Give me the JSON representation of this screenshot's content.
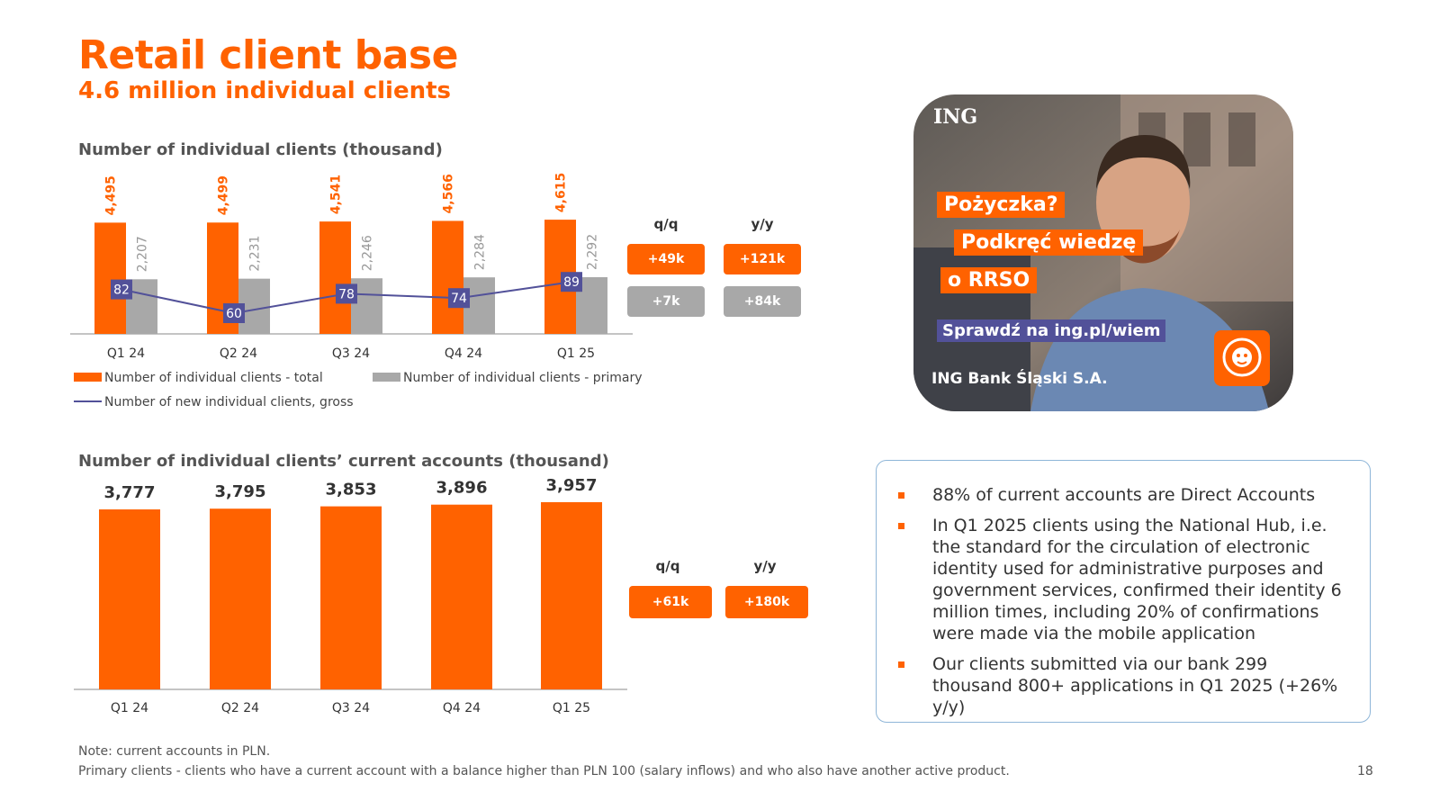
{
  "header": {
    "title": "Retail client base",
    "subtitle": "4.6 million individual clients"
  },
  "chart_data": [
    {
      "type": "bar",
      "title": "Number of individual clients (thousand)",
      "categories": [
        "Q1 24",
        "Q2 24",
        "Q3 24",
        "Q4 24",
        "Q1 25"
      ],
      "series": [
        {
          "name": "Number of individual clients - total",
          "kind": "bar",
          "values": [
            4495,
            4499,
            4541,
            4566,
            4615
          ],
          "labels": [
            "4,495",
            "4,499",
            "4,541",
            "4,566",
            "4,615"
          ],
          "color": "#ff6200"
        },
        {
          "name": "Number of individual clients - primary",
          "kind": "bar",
          "values": [
            2207,
            2231,
            2246,
            2284,
            2292
          ],
          "labels": [
            "2,207",
            "2,231",
            "2,246",
            "2,284",
            "2,292"
          ],
          "color": "#a8a8a8"
        },
        {
          "name": "Number of new individual clients, gross",
          "kind": "line",
          "values": [
            82,
            60,
            78,
            74,
            89
          ],
          "labels": [
            "82",
            "60",
            "78",
            "74",
            "89"
          ],
          "color": "#525199"
        }
      ],
      "legend_position": "bottom",
      "grid": false
    },
    {
      "type": "bar",
      "title": "Number of individual clients’ current accounts (thousand)",
      "categories": [
        "Q1 24",
        "Q2 24",
        "Q3 24",
        "Q4 24",
        "Q1 25"
      ],
      "series": [
        {
          "values": [
            3777,
            3795,
            3853,
            3896,
            3957
          ],
          "labels": [
            "3,777",
            "3,795",
            "3,853",
            "3,896",
            "3,957"
          ],
          "color": "#ff6200"
        }
      ],
      "grid": false
    }
  ],
  "changes1": {
    "qq_label": "q/q",
    "yy_label": "y/y",
    "total_qq": "+49k",
    "total_yy": "+121k",
    "primary_qq": "+7k",
    "primary_yy": "+84k"
  },
  "changes2": {
    "qq_label": "q/q",
    "yy_label": "y/y",
    "qq": "+61k",
    "yy": "+180k"
  },
  "promo": {
    "logo": "ING",
    "line1": "Pożyczka?",
    "line2": "Podkręć wiedzę",
    "line3": "o RRSO",
    "cta": "Sprawdź na ing.pl/wiem",
    "footer": "ING Bank Śląski S.A.",
    "icon": "lion-icon"
  },
  "info": {
    "bullets": [
      "88% of current accounts are Direct Accounts",
      "In Q1 2025 clients using the National Hub, i.e. the standard for the circulation of electronic identity used for administrative purposes and government services, confirmed their identity 6 million times, including 20% of confirmations were made via the mobile application",
      "Our clients submitted via our bank 299 thousand 800+ applications in Q1 2025 (+26% y/y)"
    ]
  },
  "notes": {
    "note1": "Note: current accounts in PLN.",
    "note2": "Primary clients - clients who have a current account with a balance higher than PLN 100 (salary inflows) and who also have another active product."
  },
  "page_number": "18"
}
